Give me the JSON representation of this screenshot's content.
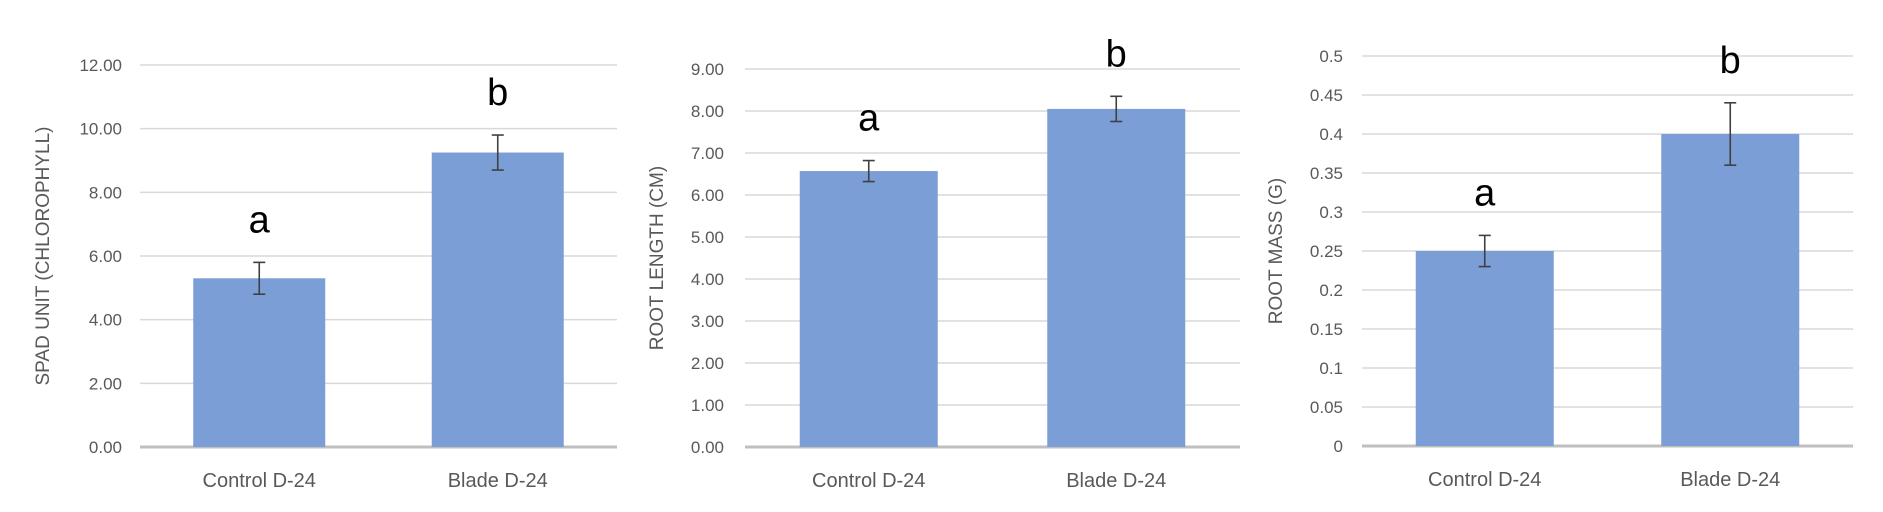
{
  "colors": {
    "bar": "#7B9ED6",
    "grid": "#D9D9D9",
    "axis": "#BFBFBF",
    "text": "#595959",
    "letter": "#000000",
    "error": "#404040"
  },
  "chart_data": [
    {
      "type": "bar",
      "categories": [
        "Control  D-24",
        "Blade  D-24"
      ],
      "values": [
        5.3,
        9.25
      ],
      "errors": [
        0.5,
        0.55
      ],
      "significance": [
        "a",
        "b"
      ],
      "ylabel": "SPAD UNIT (CHLOROPHYLL)",
      "ylim": [
        0,
        12
      ],
      "ytick_step": 2,
      "ytick_labels": [
        "0.00",
        "2.00",
        "4.00",
        "6.00",
        "8.00",
        "10.00",
        "12.00"
      ],
      "grid": true,
      "legend": "none"
    },
    {
      "type": "bar",
      "categories": [
        "Control  D-24",
        "Blade  D-24"
      ],
      "values": [
        6.57,
        8.05
      ],
      "errors": [
        0.25,
        0.3
      ],
      "significance": [
        "a",
        "b"
      ],
      "ylabel": "ROOT LENGTH (CM)",
      "ylim": [
        0,
        9
      ],
      "ytick_step": 1,
      "ytick_labels": [
        "0.00",
        "1.00",
        "2.00",
        "3.00",
        "4.00",
        "5.00",
        "6.00",
        "7.00",
        "8.00",
        "9.00"
      ],
      "grid": true,
      "legend": "none"
    },
    {
      "type": "bar",
      "categories": [
        "Control  D-24",
        "Blade  D-24"
      ],
      "values": [
        0.25,
        0.4
      ],
      "errors": [
        0.02,
        0.04
      ],
      "significance": [
        "a",
        "b"
      ],
      "ylabel": "ROOT MASS (G)",
      "ylim": [
        0,
        0.5
      ],
      "ytick_step": 0.05,
      "ytick_labels": [
        "0",
        "0.05",
        "0.1",
        "0.15",
        "0.2",
        "0.25",
        "0.3",
        "0.35",
        "0.4",
        "0.45",
        "0.5"
      ],
      "grid": true,
      "legend": "none"
    }
  ]
}
